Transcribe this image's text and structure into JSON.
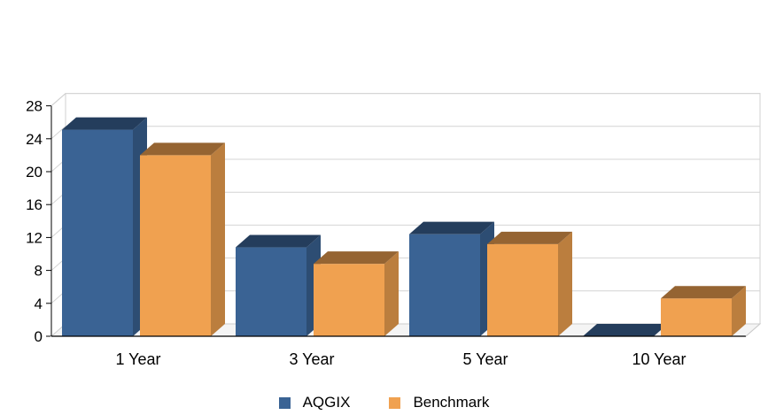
{
  "chart_data": {
    "type": "bar",
    "categories": [
      "1 Year",
      "3 Year",
      "5 Year",
      "10 Year"
    ],
    "series": [
      {
        "name": "AQGIX",
        "values": [
          25.1,
          10.8,
          12.4,
          0.0
        ],
        "color": "#3A6394"
      },
      {
        "name": "Benchmark",
        "values": [
          22.0,
          8.8,
          11.2,
          4.6
        ],
        "color": "#F0A150"
      }
    ],
    "y_ticks": [
      "0",
      "4",
      "8",
      "12",
      "16",
      "20",
      "24",
      "28"
    ],
    "ylim": [
      0,
      28
    ],
    "grid": true,
    "three_d": true,
    "legend_position": "bottom"
  }
}
